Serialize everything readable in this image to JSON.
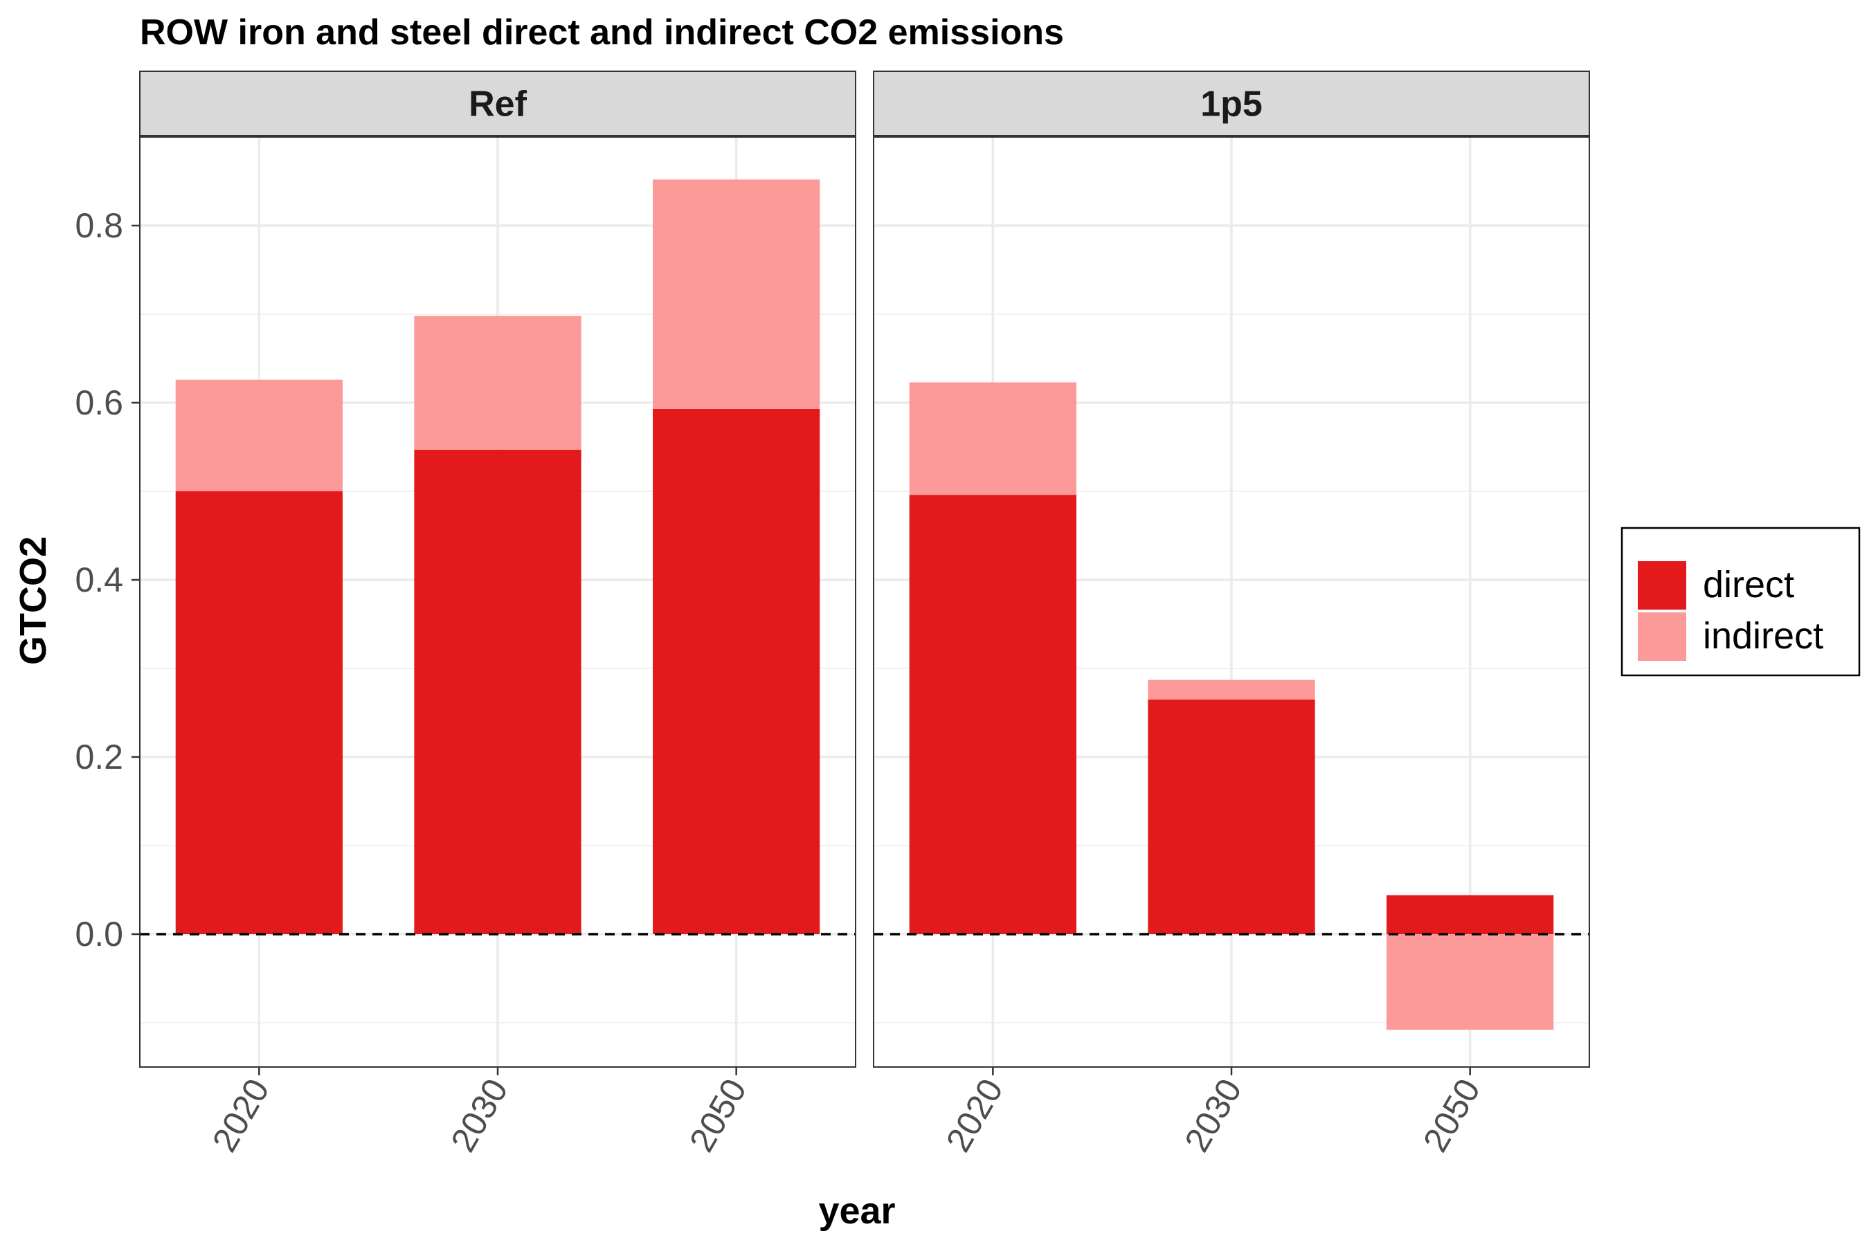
{
  "chart_data": {
    "type": "bar",
    "stacked": true,
    "title": "ROW iron and steel direct and indirect CO2 emissions",
    "xlabel": "year",
    "ylabel": "GTCO2",
    "ylim": [
      -0.15,
      0.9
    ],
    "yticks": [
      0.0,
      0.2,
      0.4,
      0.6,
      0.8
    ],
    "ytick_labels": [
      "0.0",
      "0.2",
      "0.4",
      "0.6",
      "0.8"
    ],
    "reference_line": 0.0,
    "grid": true,
    "legend_position": "right",
    "legend": [
      {
        "name": "direct",
        "color": "#e31a1c"
      },
      {
        "name": "indirect",
        "color": "#fb9a99"
      }
    ],
    "facets": [
      {
        "label": "Ref",
        "categories": [
          "2020",
          "2030",
          "2050"
        ],
        "series": [
          {
            "name": "direct",
            "values": [
              0.5,
              0.547,
              0.593
            ]
          },
          {
            "name": "indirect",
            "values": [
              0.126,
              0.151,
              0.259
            ]
          }
        ]
      },
      {
        "label": "1p5",
        "categories": [
          "2020",
          "2030",
          "2050"
        ],
        "series": [
          {
            "name": "direct",
            "values": [
              0.496,
              0.265,
              0.044
            ]
          },
          {
            "name": "indirect",
            "values": [
              0.127,
              0.022,
              -0.108
            ]
          }
        ]
      }
    ]
  }
}
